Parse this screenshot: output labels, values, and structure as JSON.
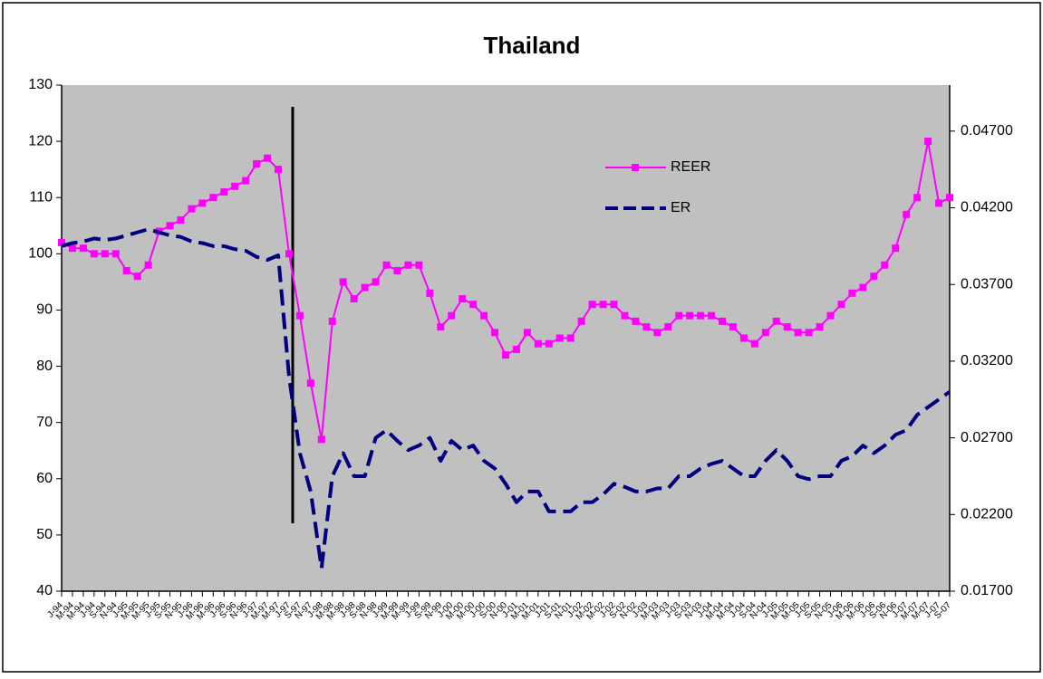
{
  "chart_data": {
    "type": "line",
    "title": "Thailand",
    "categories": [
      "J-94",
      "M-94",
      "M-94",
      "J-94",
      "S-94",
      "N-94",
      "J-95",
      "M-95",
      "M-95",
      "J-95",
      "S-95",
      "N-95",
      "J-96",
      "M-96",
      "M-96",
      "J-96",
      "S-96",
      "N-96",
      "J-97",
      "M-97",
      "M-97",
      "J-97",
      "S-97",
      "N-97",
      "J-98",
      "M-98",
      "M-98",
      "J-98",
      "S-98",
      "N-98",
      "J-99",
      "M-99",
      "M-99",
      "J-99",
      "S-99",
      "N-99",
      "J-00",
      "M-00",
      "M-00",
      "J-00",
      "S-00",
      "N-00",
      "J-01",
      "M-01",
      "M-01",
      "J-01",
      "S-01",
      "N-01",
      "J-02",
      "M-02",
      "M-02",
      "J-02",
      "S-02",
      "N-02",
      "J-03",
      "M-03",
      "M-03",
      "J-03",
      "S-03",
      "N-03",
      "J-04",
      "M-04",
      "M-04",
      "J-04",
      "S-04",
      "N-04",
      "J-05",
      "M-05",
      "M-05",
      "J-05",
      "S-05",
      "N-05",
      "J-06",
      "M-06",
      "M-06",
      "J-06",
      "S-06",
      "N-06",
      "J-07",
      "M-07",
      "M-07",
      "J-07",
      "S-07"
    ],
    "series": [
      {
        "name": "REER",
        "color": "#ff00ff",
        "axis": "y",
        "values": [
          102,
          101,
          101,
          100,
          100,
          100,
          97,
          96,
          98,
          104,
          105,
          106,
          108,
          109,
          110,
          111,
          112,
          113,
          116,
          117,
          115,
          100,
          89,
          77,
          67,
          88,
          95,
          92,
          94,
          95,
          98,
          97,
          98,
          98,
          93,
          87,
          89,
          92,
          91,
          89,
          86,
          82,
          83,
          86,
          84,
          84,
          85,
          85,
          88,
          91,
          91,
          91,
          89,
          88,
          87,
          86,
          87,
          89,
          89,
          89,
          89,
          88,
          87,
          85,
          84,
          86,
          88,
          87,
          86,
          86,
          87,
          89,
          91,
          93,
          94,
          96,
          98,
          101,
          107,
          110,
          120,
          109,
          110
        ]
      },
      {
        "name": "ER",
        "color": "#000080",
        "axis": "y2",
        "values": [
          0.0395,
          0.0397,
          0.0398,
          0.04,
          0.0399,
          0.04,
          0.0402,
          0.0404,
          0.0406,
          0.0404,
          0.0402,
          0.0401,
          0.0398,
          0.0397,
          0.0395,
          0.0395,
          0.0393,
          0.0392,
          0.0388,
          0.0386,
          0.0389,
          0.031,
          0.026,
          0.0235,
          0.0185,
          0.0245,
          0.026,
          0.0245,
          0.0245,
          0.027,
          0.0275,
          0.0268,
          0.0262,
          0.0265,
          0.027,
          0.0255,
          0.0268,
          0.0262,
          0.0265,
          0.0255,
          0.025,
          0.024,
          0.0228,
          0.0235,
          0.0235,
          0.0222,
          0.0222,
          0.0222,
          0.0228,
          0.0228,
          0.0233,
          0.024,
          0.0238,
          0.0235,
          0.0235,
          0.0237,
          0.0237,
          0.0245,
          0.0245,
          0.025,
          0.0253,
          0.0255,
          0.025,
          0.0245,
          0.0245,
          0.0255,
          0.0262,
          0.0255,
          0.0245,
          0.0243,
          0.0245,
          0.0245,
          0.0255,
          0.0258,
          0.0265,
          0.026,
          0.0265,
          0.0272,
          0.0275,
          0.0285,
          0.029,
          0.0295,
          0.03
        ]
      }
    ],
    "ylim": [
      40,
      130
    ],
    "yticks": [
      40,
      50,
      60,
      70,
      80,
      90,
      100,
      110,
      120,
      130
    ],
    "y2lim": [
      0.017,
      0.05
    ],
    "y2ticks": [
      {
        "value": 0.017,
        "label": "0.01700"
      },
      {
        "value": 0.022,
        "label": "0.02200"
      },
      {
        "value": 0.027,
        "label": "0.02700"
      },
      {
        "value": 0.032,
        "label": "0.03200"
      },
      {
        "value": 0.037,
        "label": "0.03700"
      },
      {
        "value": 0.042,
        "label": "0.04200"
      },
      {
        "value": 0.047,
        "label": "0.04700"
      }
    ],
    "grid": false
  }
}
